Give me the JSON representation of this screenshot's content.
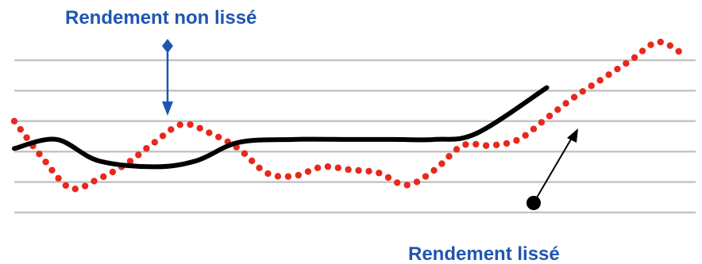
{
  "chart_data": {
    "type": "line",
    "title": "",
    "xlabel": "",
    "ylabel": "",
    "grid": true,
    "gridline_count": 6,
    "annotations": {
      "unsmoothed": "Rendement non lissé",
      "smoothed": "Rendement lissé"
    },
    "series": [
      {
        "name": "Rendement non lissé",
        "style": "dotted",
        "color": "#e8281c",
        "x": [
          0,
          2,
          4,
          6,
          8,
          10,
          12,
          14,
          16,
          18,
          20,
          22,
          24,
          26,
          28,
          30,
          32,
          34,
          36,
          38,
          40,
          42,
          44,
          46,
          48
        ],
        "y": [
          3.0,
          1.8,
          0.8,
          1.1,
          1.6,
          2.3,
          2.9,
          2.6,
          2.1,
          1.3,
          1.2,
          1.5,
          1.4,
          1.3,
          0.9,
          1.4,
          2.2,
          2.2,
          2.4,
          3.1,
          3.8,
          4.4,
          5.0,
          5.6,
          5.1
        ],
        "x_points": [
          0,
          3,
          6,
          10,
          13,
          16,
          20,
          24,
          27,
          30,
          33,
          38
        ]
      },
      {
        "name": "Rendement lissé",
        "style": "solid",
        "color": "#000000",
        "x": [
          0,
          3,
          6,
          10,
          13,
          16,
          20,
          24,
          27,
          30,
          33,
          38
        ],
        "y": [
          2.1,
          2.4,
          1.7,
          1.5,
          1.7,
          2.3,
          2.4,
          2.4,
          2.4,
          2.4,
          2.6,
          4.1
        ]
      }
    ],
    "colors": {
      "annotation_text": "#1f56b0",
      "gridline": "#c4c4c4"
    }
  }
}
